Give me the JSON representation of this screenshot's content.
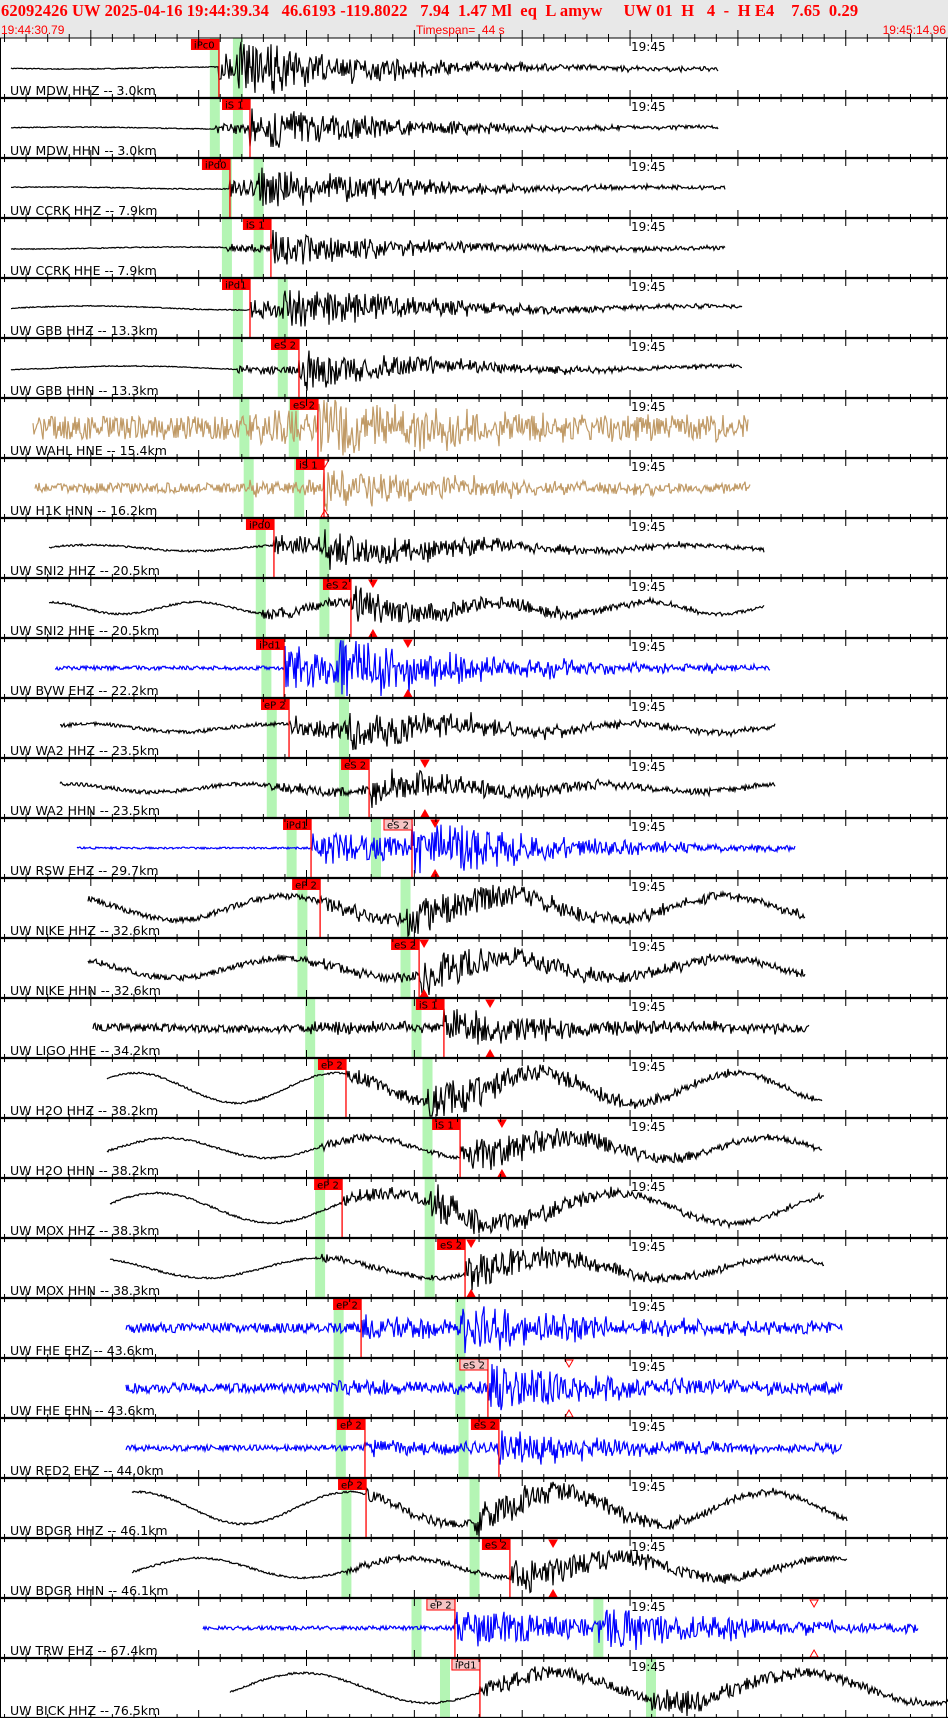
{
  "header": {
    "title": "62092426 UW 2025-04-16 19:44:39.34   46.6193 -119.8022   7.94  1.47 Ml  eq  L amyw     UW 01  H   4  -  H E4    7.65  0.29",
    "start_time": "19:44:30.79",
    "timespan": "Timespan=  44 s",
    "end_time": "19:45:14.96"
  },
  "minute_label": "19:45",
  "colors": {
    "header_text": "#ff0000",
    "pick": "#ff0000",
    "pick_outline_fill": "#f5c4c4",
    "theoretical_bar": "#b4f5b4",
    "black": "#000000",
    "brown": "#c09a66",
    "blue": "#0000ff"
  },
  "traces": [
    {
      "label": "UW MDW HHZ -- 3.0km",
      "color": "#000000",
      "bars": [
        "19:44:40.75",
        "19:44:41.82"
      ],
      "picks": [
        {
          "label": "iPc0",
          "time": "19:44:40.94",
          "style": "solid"
        }
      ],
      "markers": []
    },
    {
      "label": "UW MDW HHN -- 3.0km",
      "color": "#000000",
      "bars": [
        "19:44:40.75",
        "19:44:41.82"
      ],
      "picks": [
        {
          "label": "iS 1",
          "time": "19:44:42.38",
          "style": "solid"
        }
      ],
      "markers": []
    },
    {
      "label": "UW CCRK HHZ -- 7.9km",
      "color": "#000000",
      "bars": [
        "19:44:41.31",
        "19:44:42.78"
      ],
      "picks": [
        {
          "label": "iPd0",
          "time": "19:44:41.45",
          "style": "solid"
        }
      ],
      "markers": []
    },
    {
      "label": "UW CCRK HHE -- 7.9km",
      "color": "#000000",
      "bars": [
        "19:44:41.31",
        "19:44:42.78"
      ],
      "picks": [
        {
          "label": "iS 1",
          "time": "19:44:43.35",
          "style": "solid"
        }
      ],
      "markers": []
    },
    {
      "label": "UW GBB HHZ -- 13.3km",
      "color": "#000000",
      "bars": [
        "19:44:41.82",
        "19:44:43.90"
      ],
      "picks": [
        {
          "label": "iPd1",
          "time": "19:44:42.38",
          "style": "solid"
        }
      ],
      "markers": []
    },
    {
      "label": "UW GBB HHN -- 13.3km",
      "color": "#000000",
      "bars": [
        "19:44:41.82",
        "19:44:43.90"
      ],
      "picks": [
        {
          "label": "eS 2",
          "time": "19:44:44.65",
          "style": "solid"
        }
      ],
      "markers": []
    },
    {
      "label": "UW WAHL HNE -- 15.4km",
      "color": "#c09a66",
      "bars": [
        "19:44:42.12",
        "19:44:44.41"
      ],
      "picks": [
        {
          "label": "eS 2",
          "time": "19:44:45.53",
          "style": "solid"
        }
      ],
      "markers": []
    },
    {
      "label": "UW H1K HNN -- 16.2km",
      "color": "#c09a66",
      "bars": [
        "19:44:42.32",
        "19:44:44.66"
      ],
      "picks": [
        {
          "label": "iS 1",
          "time": "19:44:45.81",
          "style": "solid"
        }
      ],
      "markers": [
        {
          "time": "19:44:45.85",
          "style": "outline"
        }
      ]
    },
    {
      "label": "UW SNI2 HHZ -- 20.5km",
      "color": "#000000",
      "bars": [
        "19:44:42.88",
        "19:44:45.83"
      ],
      "picks": [
        {
          "label": "iPd0",
          "time": "19:44:43.49",
          "style": "solid"
        }
      ],
      "markers": []
    },
    {
      "label": "UW SNI2 HHE -- 20.5km",
      "color": "#000000",
      "bars": [
        "19:44:42.88",
        "19:44:45.83"
      ],
      "picks": [
        {
          "label": "eS 2",
          "time": "19:44:47.06",
          "style": "solid"
        }
      ],
      "markers": [
        {
          "time": "19:44:48.08",
          "style": "solid"
        }
      ]
    },
    {
      "label": "UW BVW EHZ -- 22.2km",
      "color": "#0000ff",
      "bars": [
        "19:44:43.14",
        "19:44:46.54"
      ],
      "picks": [
        {
          "label": "iPd1",
          "time": "19:44:43.96",
          "style": "solid"
        }
      ],
      "markers": [
        {
          "time": "19:44:49.70",
          "style": "solid"
        }
      ]
    },
    {
      "label": "UW WA2 HHZ -- 23.5km",
      "color": "#000000",
      "bars": [
        "19:44:43.39",
        "19:44:46.74"
      ],
      "picks": [
        {
          "label": "eP 2",
          "time": "19:44:44.19",
          "style": "solid"
        }
      ],
      "markers": []
    },
    {
      "label": "UW WA2 HHN -- 23.5km",
      "color": "#000000",
      "bars": [
        "19:44:43.39",
        "19:44:46.74"
      ],
      "picks": [
        {
          "label": "eS 2",
          "time": "19:44:47.90",
          "style": "solid"
        }
      ],
      "markers": [
        {
          "time": "19:44:50.49",
          "style": "solid"
        }
      ]
    },
    {
      "label": "UW RSW EHZ -- 29.7km",
      "color": "#0000ff",
      "bars": [
        "19:44:44.31",
        "19:44:48.22"
      ],
      "picks": [
        {
          "label": "iPd1",
          "time": "19:44:45.21",
          "style": "solid"
        },
        {
          "label": "eS 2",
          "time": "19:44:49.89",
          "style": "outline"
        }
      ],
      "markers": [
        {
          "time": "19:44:50.96",
          "style": "solid"
        }
      ]
    },
    {
      "label": "UW NIKE HHZ -- 32.6km",
      "color": "#000000",
      "bars": [
        "19:44:44.81",
        "19:44:49.59"
      ],
      "picks": [
        {
          "label": "eP 2",
          "time": "19:44:45.63",
          "style": "solid"
        }
      ],
      "markers": []
    },
    {
      "label": "UW NIKE HHN -- 32.6km",
      "color": "#000000",
      "bars": [
        "19:44:44.81",
        "19:44:49.59"
      ],
      "picks": [
        {
          "label": "eS 2",
          "time": "19:44:50.22",
          "style": "solid"
        }
      ],
      "markers": [
        {
          "time": "19:44:50.45",
          "style": "solid"
        }
      ]
    },
    {
      "label": "UW LIGO HHE -- 34.2km",
      "color": "#000000",
      "bars": [
        "19:44:45.17",
        "19:44:50.10"
      ],
      "picks": [
        {
          "label": "iS 1",
          "time": "19:44:51.37",
          "style": "solid"
        }
      ],
      "markers": [
        {
          "time": "19:44:53.51",
          "style": "solid"
        }
      ]
    },
    {
      "label": "UW H2O HHZ -- 38.2km",
      "color": "#000000",
      "bars": [
        "19:44:45.58",
        "19:44:50.61"
      ],
      "picks": [
        {
          "label": "eP 2",
          "time": "19:44:46.83",
          "style": "solid"
        }
      ],
      "markers": []
    },
    {
      "label": "UW H2O HHN -- 38.2km",
      "color": "#000000",
      "bars": [
        "19:44:45.58",
        "19:44:50.61"
      ],
      "picks": [
        {
          "label": "iS 1",
          "time": "19:44:52.12",
          "style": "solid"
        }
      ],
      "markers": [
        {
          "time": "19:44:54.06",
          "style": "solid"
        }
      ]
    },
    {
      "label": "UW MOX HHZ -- 38.3km",
      "color": "#000000",
      "bars": [
        "19:44:45.63",
        "19:44:50.71"
      ],
      "picks": [
        {
          "label": "eP 2",
          "time": "19:44:46.65",
          "style": "solid"
        }
      ],
      "markers": []
    },
    {
      "label": "UW MOX HHN -- 38.3km",
      "color": "#000000",
      "bars": [
        "19:44:45.63",
        "19:44:50.71"
      ],
      "picks": [
        {
          "label": "eS 2",
          "time": "19:44:52.35",
          "style": "solid"
        }
      ],
      "markers": [
        {
          "time": "19:44:52.63",
          "style": "solid"
        }
      ]
    },
    {
      "label": "UW FHE EHZ -- 43.6km",
      "color": "#0000ff",
      "bars": [
        "19:44:46.49",
        "19:44:52.13"
      ],
      "picks": [
        {
          "label": "eP 2",
          "time": "19:44:47.53",
          "style": "solid"
        }
      ],
      "markers": []
    },
    {
      "label": "UW FHE EHN -- 43.6km",
      "color": "#0000ff",
      "bars": [
        "19:44:46.49",
        "19:44:52.13"
      ],
      "picks": [
        {
          "label": "eS 2",
          "time": "19:44:53.41",
          "style": "outline"
        }
      ],
      "markers": [
        {
          "time": "19:44:57.17",
          "style": "outline"
        }
      ]
    },
    {
      "label": "UW RED2 EHZ -- 44.0km",
      "color": "#0000ff",
      "bars": [
        "19:44:46.59",
        "19:44:52.28"
      ],
      "picks": [
        {
          "label": "eP 2",
          "time": "19:44:47.71",
          "style": "solid"
        },
        {
          "label": "eS 2",
          "time": "19:44:53.92",
          "style": "solid"
        }
      ],
      "markers": []
    },
    {
      "label": "UW BDGR HHZ -- 46.1km",
      "color": "#000000",
      "bars": [
        "19:44:46.85",
        "19:44:52.79"
      ],
      "picks": [
        {
          "label": "eP 2",
          "time": "19:44:47.76",
          "style": "solid"
        }
      ],
      "markers": []
    },
    {
      "label": "UW BDGR HHN -- 46.1km",
      "color": "#000000",
      "bars": [
        "19:44:46.85",
        "19:44:52.79"
      ],
      "picks": [
        {
          "label": "eS 2",
          "time": "19:44:54.43",
          "style": "solid"
        }
      ],
      "markers": [
        {
          "time": "19:44:56.43",
          "style": "solid"
        }
      ]
    },
    {
      "label": "UW TRW EHZ -- 67.4km",
      "color": "#0000ff",
      "bars": [
        "19:44:50.10",
        "19:44:58.53"
      ],
      "picks": [
        {
          "label": "eP 2",
          "time": "19:44:51.88",
          "style": "outline"
        }
      ],
      "markers": [
        {
          "time": "19:45:08.53",
          "style": "outline"
        }
      ]
    },
    {
      "label": "UW BICK HHZ -- 76.5km",
      "color": "#000000",
      "bars": [
        "19:44:51.42",
        "19:45:00.97"
      ],
      "picks": [
        {
          "label": "iPd1",
          "time": "19:44:53.04",
          "style": "outline"
        }
      ],
      "markers": []
    }
  ]
}
